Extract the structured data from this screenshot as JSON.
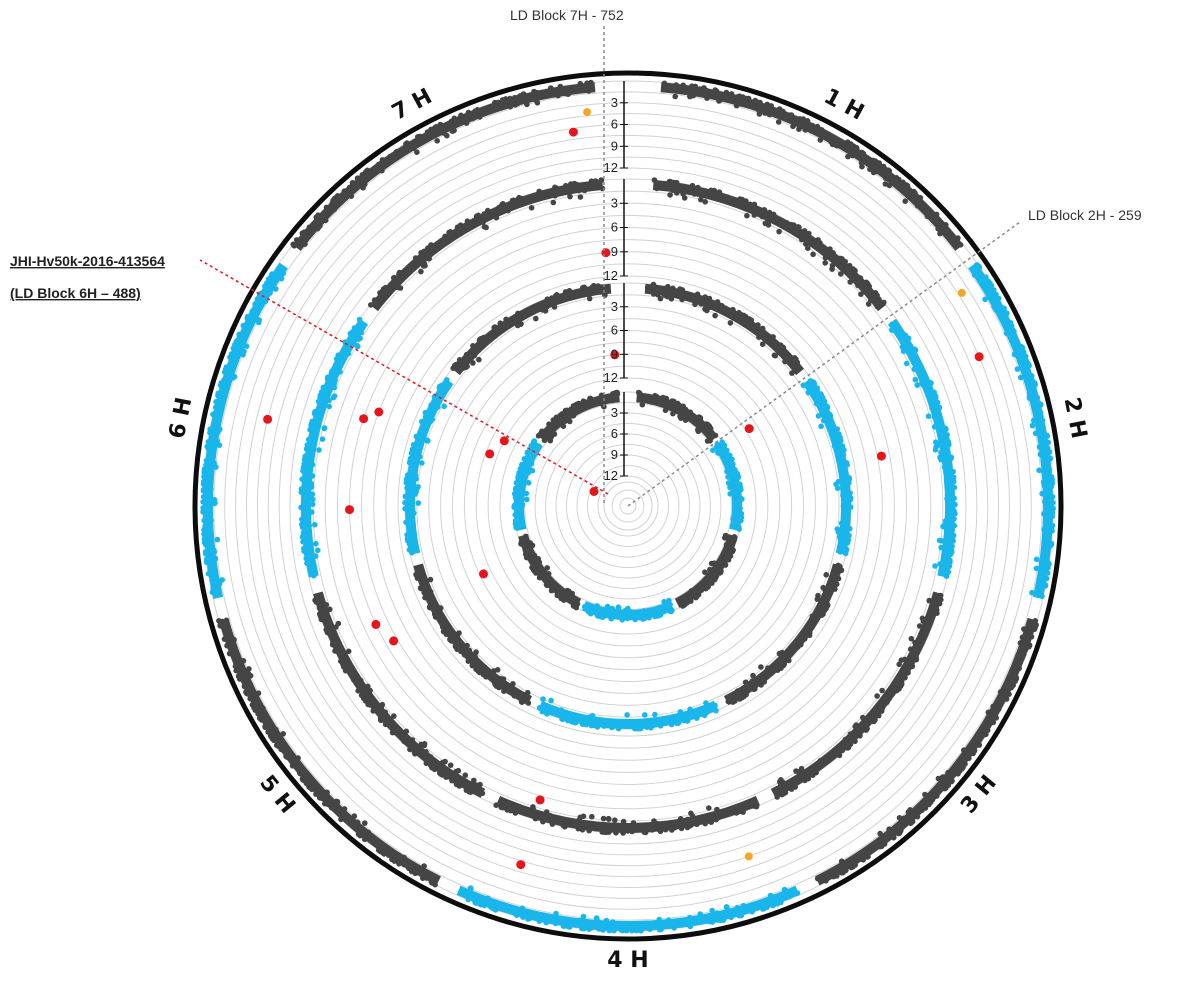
{
  "chart_data": {
    "type": "scatter",
    "subtype": "circular-manhattan",
    "y_axis_ticks": [
      "3",
      "6",
      "9",
      "12"
    ],
    "ylim": [
      0,
      12
    ],
    "chromosomes": [
      "1 H",
      "2 H",
      "3 H",
      "4 H",
      "5 H",
      "6 H",
      "7 H"
    ],
    "colors": {
      "dark": "#454545",
      "blue": "#19b6ec",
      "significant": "#e8141c",
      "suggestive": "#f5a623",
      "border": "#0d0d0d",
      "grid": "#d2d2d2",
      "marker_line": "#e8141c",
      "block_line": "#8a8a8a"
    },
    "tracks_outer_to_inner": [
      {
        "highlight": [
          "2 H",
          "4 H",
          "6 H"
        ],
        "significant": [
          {
            "chrom": "7 H",
            "pos": 0.92,
            "value": 6.5
          },
          {
            "chrom": "2 H",
            "pos": 0.25,
            "value": 6.0
          },
          {
            "chrom": "6 H",
            "pos": 0.55,
            "value": 7.5
          },
          {
            "chrom": "4 H",
            "pos": 0.85,
            "value": 7.0
          }
        ],
        "suggestive": [
          {
            "chrom": "7 H",
            "pos": 0.97,
            "value": 4.0
          },
          {
            "chrom": "2 H",
            "pos": 0.05,
            "value": 4.0
          },
          {
            "chrom": "4 H",
            "pos": 0.1,
            "value": 7.5
          }
        ]
      },
      {
        "highlight": [
          "2 H",
          "6 H"
        ],
        "significant": [
          {
            "chrom": "7 H",
            "pos": 0.99,
            "value": 9.0
          },
          {
            "chrom": "2 H",
            "pos": 0.5,
            "value": 8.5
          },
          {
            "chrom": "6 H",
            "pos": 0.65,
            "value": 6.0
          },
          {
            "chrom": "6 H",
            "pos": 0.7,
            "value": 7.5
          },
          {
            "chrom": "6 H",
            "pos": 0.25,
            "value": 6.0
          },
          {
            "chrom": "5 H",
            "pos": 0.8,
            "value": 6.0
          },
          {
            "chrom": "5 H",
            "pos": 0.7,
            "value": 7.0
          },
          {
            "chrom": "4 H",
            "pos": 0.85,
            "value": 2.5
          }
        ],
        "suggestive": []
      },
      {
        "highlight": [
          "2 H",
          "6 H",
          "4 H"
        ],
        "significant": [
          {
            "chrom": "7 H",
            "pos": 0.99,
            "value": 9.0
          },
          {
            "chrom": "2 H",
            "pos": 0.05,
            "value": 10.0
          },
          {
            "chrom": "6 H",
            "pos": 0.85,
            "value": 10.5
          },
          {
            "chrom": "6 H",
            "pos": 0.7,
            "value": 9.5
          },
          {
            "chrom": "5 H",
            "pos": 0.8,
            "value": 8.0
          }
        ],
        "suggestive": []
      },
      {
        "highlight": [
          "2 H",
          "4 H",
          "6 H"
        ],
        "significant": [
          {
            "chrom": "6 H",
            "pos": 0.75,
            "value": 11.0
          }
        ],
        "suggestive": []
      }
    ],
    "annotations": {
      "ld7h": "LD Block 7H - 752",
      "ld2h": "LD Block 2H - 259",
      "marker_line1": "JHI-Hv50k-2016-413564",
      "marker_line2": "(LD Block 6H – 488)"
    }
  }
}
